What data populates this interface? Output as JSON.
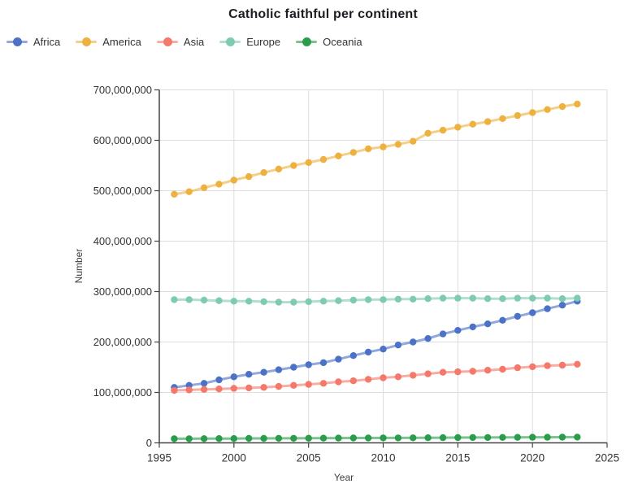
{
  "page": {
    "background": "#ffffff"
  },
  "style_colors": {
    "grid": "#dddddd",
    "axis": "#444444",
    "tick_text": "#333333",
    "title_text": "#1b1d22",
    "legend_text": "#333333"
  },
  "chart_data": {
    "type": "line",
    "title": "Catholic faithful per continent",
    "xlabel": "Year",
    "ylabel": "Number",
    "xlim": [
      1995,
      2025
    ],
    "ylim": [
      0,
      700000000
    ],
    "x_ticks": [
      1995,
      2000,
      2005,
      2010,
      2015,
      2020,
      2025
    ],
    "y_ticks": [
      0,
      100000000,
      200000000,
      300000000,
      400000000,
      500000000,
      600000000,
      700000000
    ],
    "grid": true,
    "legend_position": "top-left",
    "markers": true,
    "x": [
      1996,
      1997,
      1998,
      1999,
      2000,
      2001,
      2002,
      2003,
      2004,
      2005,
      2006,
      2007,
      2008,
      2009,
      2010,
      2011,
      2012,
      2013,
      2014,
      2015,
      2016,
      2017,
      2018,
      2019,
      2020,
      2021,
      2022,
      2023
    ],
    "series": [
      {
        "name": "Africa",
        "color": "#4c72c7",
        "values": [
          110000000,
          114000000,
          118000000,
          125000000,
          131000000,
          136000000,
          140000000,
          145000000,
          150000000,
          155000000,
          159000000,
          166000000,
          173000000,
          180000000,
          186000000,
          194000000,
          200000000,
          207000000,
          216000000,
          223000000,
          230000000,
          236000000,
          243000000,
          251000000,
          258000000,
          266000000,
          273000000,
          281000000
        ]
      },
      {
        "name": "America",
        "color": "#edb13f",
        "values": [
          493000000,
          498000000,
          506000000,
          513000000,
          521000000,
          528000000,
          536000000,
          543000000,
          550000000,
          556000000,
          562000000,
          569000000,
          576000000,
          583000000,
          587000000,
          592000000,
          598000000,
          614000000,
          620000000,
          626000000,
          632000000,
          637000000,
          643000000,
          649000000,
          655000000,
          661000000,
          667000000,
          672000000
        ]
      },
      {
        "name": "Asia",
        "color": "#f4796b",
        "values": [
          104000000,
          105000000,
          106000000,
          107000000,
          108000000,
          109000000,
          110000000,
          112000000,
          114000000,
          116000000,
          118000000,
          121000000,
          123000000,
          126000000,
          129000000,
          131000000,
          134000000,
          137000000,
          140000000,
          141000000,
          142000000,
          144000000,
          146000000,
          149000000,
          151000000,
          153000000,
          154000000,
          156000000
        ]
      },
      {
        "name": "Europe",
        "color": "#7fcbb2",
        "values": [
          284000000,
          284000000,
          283000000,
          282000000,
          281000000,
          281000000,
          280000000,
          279000000,
          279000000,
          280000000,
          281000000,
          282000000,
          283000000,
          284000000,
          284000000,
          285000000,
          285000000,
          286000000,
          287000000,
          287000000,
          287000000,
          286000000,
          286000000,
          287000000,
          287000000,
          287000000,
          286000000,
          287000000
        ]
      },
      {
        "name": "Oceania",
        "color": "#2b9c4c",
        "values": [
          8200000,
          8300000,
          8400000,
          8500000,
          8600000,
          8800000,
          8900000,
          9000000,
          9100000,
          9200000,
          9400000,
          9500000,
          9600000,
          9700000,
          9800000,
          9900000,
          10000000,
          10200000,
          10400000,
          10500000,
          10600000,
          10700000,
          10800000,
          11000000,
          11100000,
          11200000,
          11300000,
          11400000
        ]
      }
    ]
  }
}
